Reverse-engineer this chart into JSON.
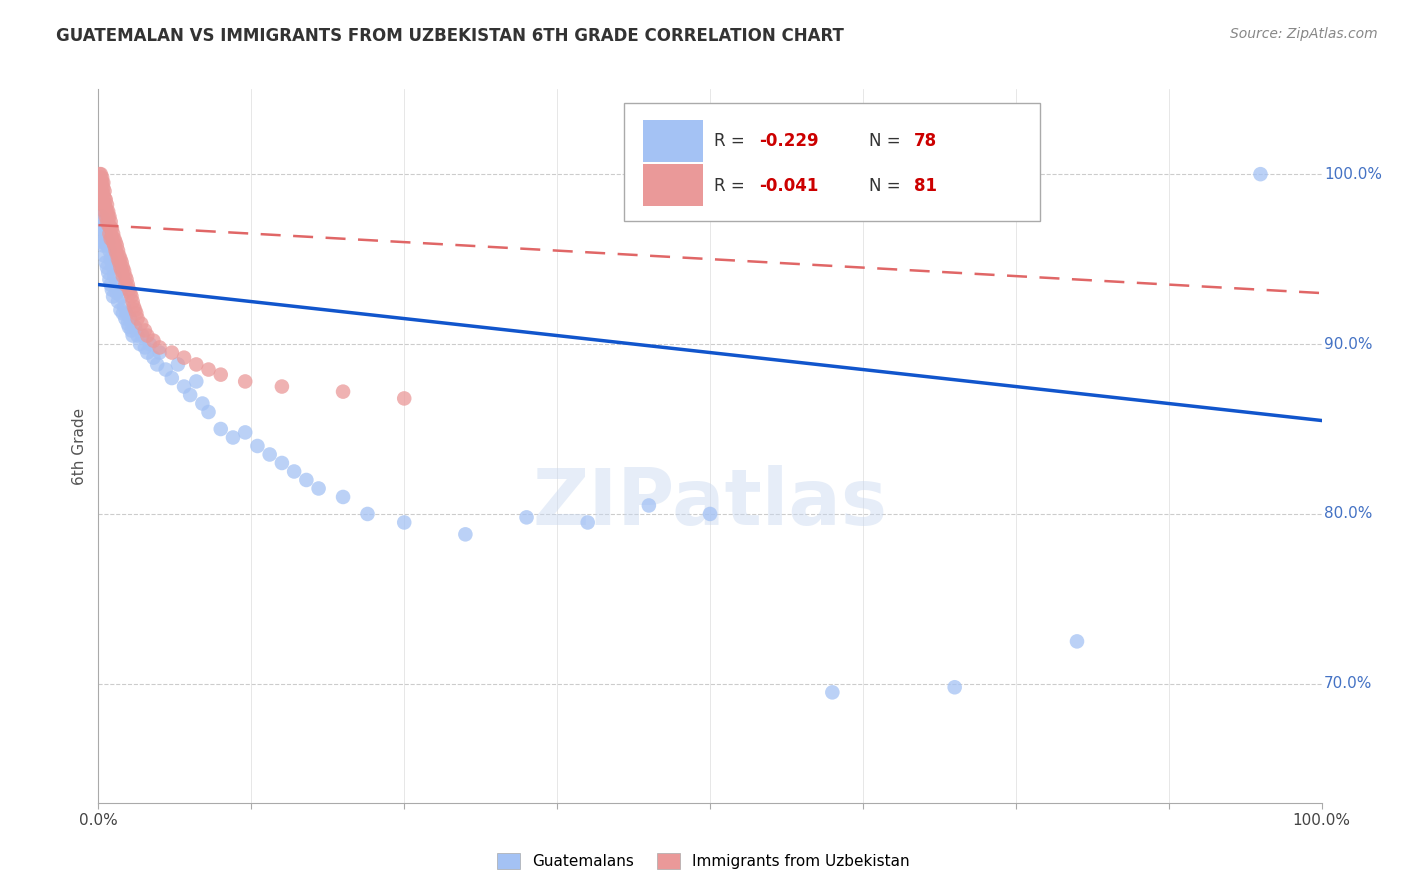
{
  "title": "GUATEMALAN VS IMMIGRANTS FROM UZBEKISTAN 6TH GRADE CORRELATION CHART",
  "source": "Source: ZipAtlas.com",
  "ylabel": "6th Grade",
  "legend_blue_label": "Guatemalans",
  "legend_pink_label": "Immigrants from Uzbekistan",
  "blue_R": -0.229,
  "blue_N": 78,
  "pink_R": -0.041,
  "pink_N": 81,
  "blue_color": "#a4c2f4",
  "pink_color": "#ea9999",
  "blue_line_color": "#1155cc",
  "pink_line_color": "#e06666",
  "watermark": "ZIPatlas",
  "blue_x": [
    0.001,
    0.002,
    0.002,
    0.003,
    0.003,
    0.004,
    0.004,
    0.005,
    0.005,
    0.006,
    0.006,
    0.007,
    0.007,
    0.008,
    0.008,
    0.009,
    0.009,
    0.01,
    0.01,
    0.011,
    0.011,
    0.012,
    0.012,
    0.013,
    0.014,
    0.015,
    0.016,
    0.017,
    0.018,
    0.019,
    0.02,
    0.021,
    0.022,
    0.023,
    0.024,
    0.025,
    0.026,
    0.027,
    0.028,
    0.03,
    0.032,
    0.034,
    0.036,
    0.038,
    0.04,
    0.042,
    0.045,
    0.048,
    0.05,
    0.055,
    0.06,
    0.065,
    0.07,
    0.075,
    0.08,
    0.085,
    0.09,
    0.1,
    0.11,
    0.12,
    0.13,
    0.14,
    0.15,
    0.16,
    0.17,
    0.18,
    0.2,
    0.22,
    0.25,
    0.3,
    0.35,
    0.4,
    0.45,
    0.5,
    0.6,
    0.7,
    0.8,
    0.95
  ],
  "blue_y": [
    0.97,
    0.965,
    0.96,
    0.975,
    0.968,
    0.972,
    0.958,
    0.96,
    0.952,
    0.965,
    0.948,
    0.958,
    0.945,
    0.96,
    0.942,
    0.955,
    0.938,
    0.95,
    0.935,
    0.948,
    0.932,
    0.945,
    0.928,
    0.94,
    0.935,
    0.93,
    0.925,
    0.932,
    0.92,
    0.928,
    0.918,
    0.922,
    0.915,
    0.918,
    0.912,
    0.91,
    0.915,
    0.908,
    0.905,
    0.91,
    0.905,
    0.9,
    0.905,
    0.898,
    0.895,
    0.9,
    0.892,
    0.888,
    0.895,
    0.885,
    0.88,
    0.888,
    0.875,
    0.87,
    0.878,
    0.865,
    0.86,
    0.85,
    0.845,
    0.848,
    0.84,
    0.835,
    0.83,
    0.825,
    0.82,
    0.815,
    0.81,
    0.8,
    0.795,
    0.788,
    0.798,
    0.795,
    0.805,
    0.8,
    0.695,
    0.698,
    0.725,
    1.0
  ],
  "pink_x": [
    0.001,
    0.001,
    0.001,
    0.002,
    0.002,
    0.002,
    0.002,
    0.003,
    0.003,
    0.003,
    0.003,
    0.004,
    0.004,
    0.004,
    0.004,
    0.005,
    0.005,
    0.005,
    0.005,
    0.006,
    0.006,
    0.006,
    0.007,
    0.007,
    0.007,
    0.008,
    0.008,
    0.008,
    0.009,
    0.009,
    0.009,
    0.01,
    0.01,
    0.01,
    0.011,
    0.011,
    0.012,
    0.012,
    0.013,
    0.013,
    0.014,
    0.014,
    0.015,
    0.015,
    0.016,
    0.016,
    0.017,
    0.017,
    0.018,
    0.018,
    0.019,
    0.019,
    0.02,
    0.02,
    0.021,
    0.022,
    0.022,
    0.023,
    0.024,
    0.025,
    0.026,
    0.027,
    0.028,
    0.029,
    0.03,
    0.031,
    0.032,
    0.035,
    0.038,
    0.04,
    0.045,
    0.05,
    0.06,
    0.07,
    0.08,
    0.09,
    0.1,
    0.12,
    0.15,
    0.2,
    0.25
  ],
  "pink_y": [
    1.0,
    0.998,
    0.995,
    1.0,
    0.997,
    0.993,
    0.99,
    0.998,
    0.995,
    0.99,
    0.985,
    0.995,
    0.992,
    0.988,
    0.982,
    0.99,
    0.986,
    0.982,
    0.978,
    0.985,
    0.98,
    0.975,
    0.982,
    0.978,
    0.972,
    0.978,
    0.975,
    0.97,
    0.975,
    0.97,
    0.965,
    0.972,
    0.968,
    0.962,
    0.968,
    0.963,
    0.965,
    0.96,
    0.962,
    0.958,
    0.96,
    0.955,
    0.958,
    0.953,
    0.955,
    0.95,
    0.952,
    0.948,
    0.95,
    0.945,
    0.948,
    0.943,
    0.945,
    0.94,
    0.943,
    0.94,
    0.935,
    0.938,
    0.935,
    0.932,
    0.93,
    0.928,
    0.925,
    0.922,
    0.92,
    0.918,
    0.915,
    0.912,
    0.908,
    0.905,
    0.902,
    0.898,
    0.895,
    0.892,
    0.888,
    0.885,
    0.882,
    0.878,
    0.875,
    0.872,
    0.868
  ]
}
